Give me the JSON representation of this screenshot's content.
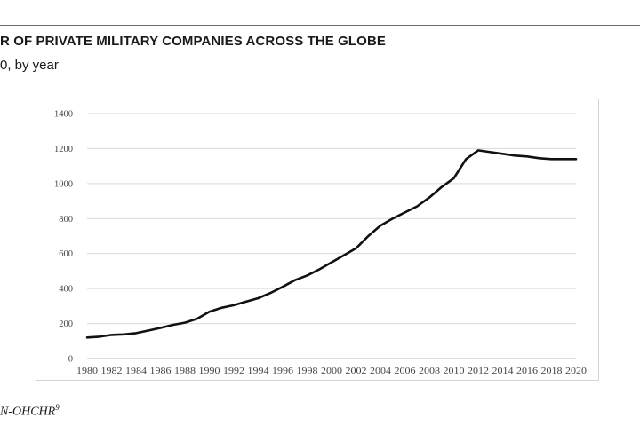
{
  "header": {
    "title": "R OF PRIVATE MILITARY COMPANIES ACROSS THE GLOBE",
    "subtitle": "0, by year"
  },
  "footer": {
    "source": "N-OHCHR",
    "footnote_marker": "9"
  },
  "colors": {
    "line": "#111111",
    "gridline": "#d9d9d9",
    "tick_text": "#444444",
    "rule": "#6b6b6b"
  },
  "chart_data": {
    "type": "line",
    "title": "",
    "xlabel": "",
    "ylabel": "",
    "ylim": [
      0,
      1400
    ],
    "yticks": [
      0,
      200,
      400,
      600,
      800,
      1000,
      1200,
      1400
    ],
    "xlim": [
      1980,
      2020
    ],
    "xticks": [
      1980,
      1982,
      1984,
      1986,
      1988,
      1990,
      1992,
      1994,
      1996,
      1998,
      2000,
      2002,
      2004,
      2006,
      2008,
      2010,
      2012,
      2014,
      2016,
      2018,
      2020
    ],
    "grid": true,
    "legend": "none",
    "series": [
      {
        "x": [
          1980,
          1981,
          1982,
          1983,
          1984,
          1985,
          1986,
          1987,
          1988,
          1989,
          1990,
          1991,
          1992,
          1993,
          1994,
          1995,
          1996,
          1997,
          1998,
          1999,
          2000,
          2001,
          2002,
          2003,
          2004,
          2005,
          2006,
          2007,
          2008,
          2009,
          2010,
          2011,
          2012,
          2013,
          2014,
          2015,
          2016,
          2017,
          2018,
          2019,
          2020
        ],
        "y": [
          120,
          125,
          135,
          138,
          145,
          160,
          175,
          192,
          205,
          228,
          268,
          290,
          305,
          325,
          345,
          375,
          410,
          448,
          475,
          510,
          550,
          590,
          630,
          700,
          760,
          800,
          835,
          870,
          920,
          980,
          1030,
          1140,
          1190,
          1180,
          1170,
          1160,
          1155,
          1145,
          1140,
          1140,
          1140
        ]
      }
    ]
  }
}
